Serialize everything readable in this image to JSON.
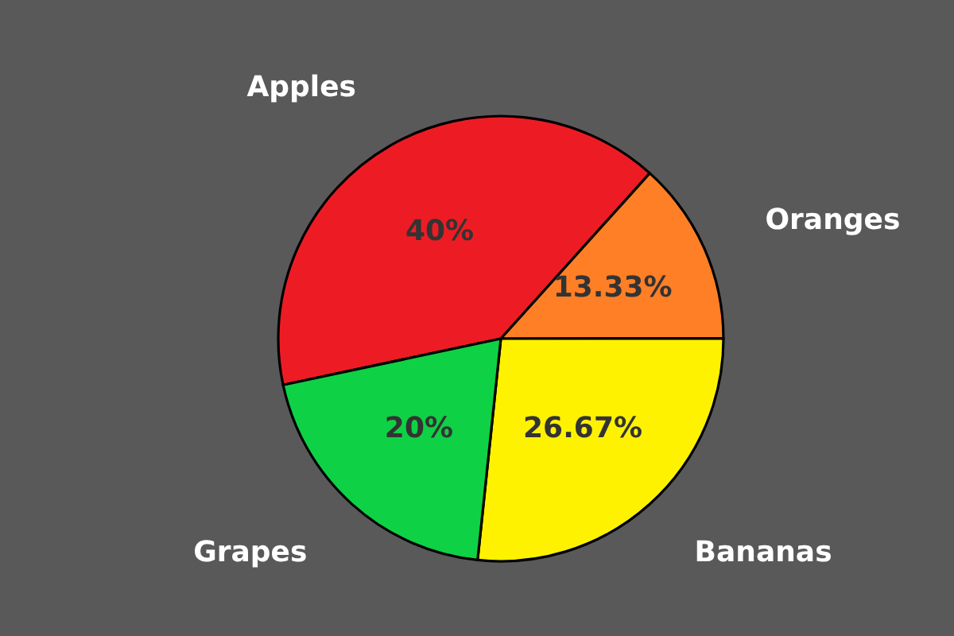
{
  "chart_data": {
    "type": "pie",
    "categories": [
      "Apples",
      "Oranges",
      "Bananas",
      "Grapes"
    ],
    "values": [
      40,
      13.33,
      26.67,
      20
    ],
    "colors": [
      "#ed1c24",
      "#ff7f27",
      "#fff200",
      "#0fd145"
    ],
    "value_labels": [
      "40%",
      "13.33%",
      "26.67%",
      "20%"
    ]
  }
}
